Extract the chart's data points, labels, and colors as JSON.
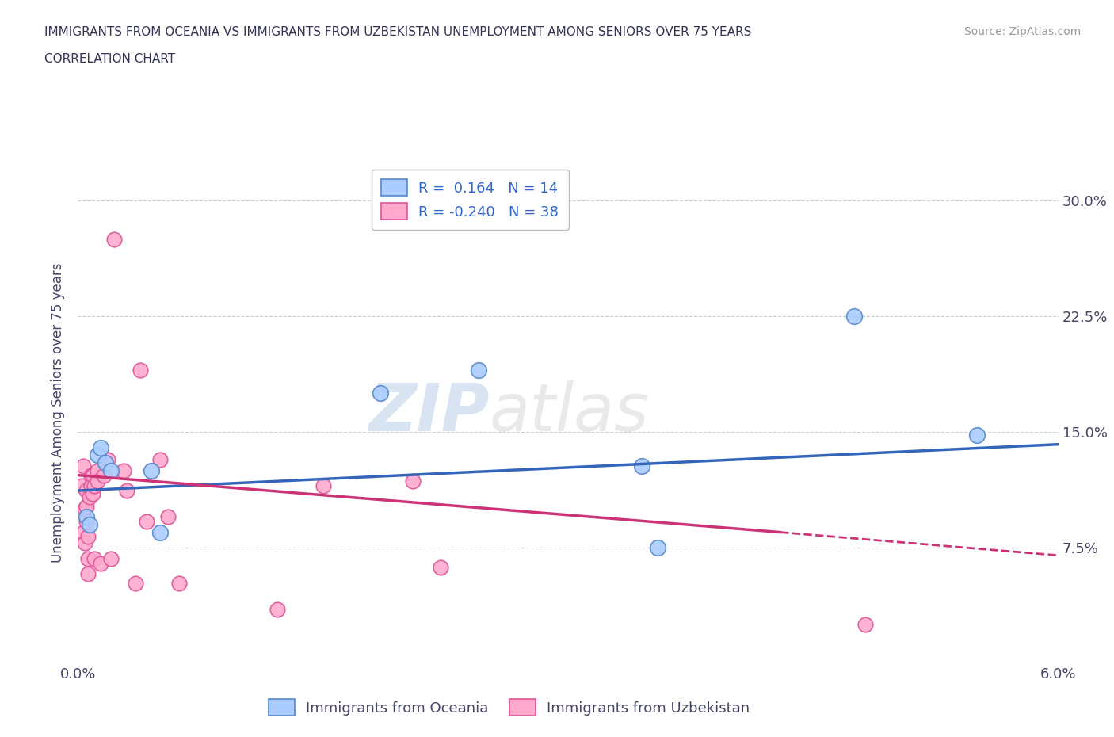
{
  "title_line1": "IMMIGRANTS FROM OCEANIA VS IMMIGRANTS FROM UZBEKISTAN UNEMPLOYMENT AMONG SENIORS OVER 75 YEARS",
  "title_line2": "CORRELATION CHART",
  "source": "Source: ZipAtlas.com",
  "ylabel": "Unemployment Among Seniors over 75 years",
  "x_min": 0.0,
  "x_max": 6.0,
  "y_min": 0.0,
  "y_max": 32.5,
  "y_ticks": [
    0.0,
    7.5,
    15.0,
    22.5,
    30.0
  ],
  "y_tick_labels_right": [
    "",
    "7.5%",
    "15.0%",
    "22.5%",
    "30.0%"
  ],
  "x_tick_labels": [
    "0.0%",
    "",
    "",
    "",
    "6.0%"
  ],
  "grid_color": "#cccccc",
  "background_color": "#ffffff",
  "watermark_zip": "ZIP",
  "watermark_atlas": "atlas",
  "oceania_color": "#aaccff",
  "uzbekistan_color": "#ffaacc",
  "oceania_edge": "#5588cc",
  "uzbekistan_edge": "#dd5599",
  "trend_oceania_color": "#3366bb",
  "trend_uzbekistan_color": "#cc3377",
  "R_oceania": 0.164,
  "N_oceania": 14,
  "R_uzbekistan": -0.24,
  "N_uzbekistan": 38,
  "trend_oceania_x0": 0.0,
  "trend_oceania_y0": 11.2,
  "trend_oceania_x1": 6.0,
  "trend_oceania_y1": 14.2,
  "trend_uzbek_solid_x0": 0.0,
  "trend_uzbek_solid_y0": 12.2,
  "trend_uzbek_solid_x1": 4.3,
  "trend_uzbek_solid_y1": 8.5,
  "trend_uzbek_dash_x0": 4.3,
  "trend_uzbek_dash_y0": 8.5,
  "trend_uzbek_dash_x1": 6.0,
  "trend_uzbek_dash_y1": 7.0,
  "oceania_points": [
    [
      0.05,
      9.5
    ],
    [
      0.07,
      9.0
    ],
    [
      0.12,
      13.5
    ],
    [
      0.14,
      14.0
    ],
    [
      0.17,
      13.0
    ],
    [
      0.2,
      12.5
    ],
    [
      0.45,
      12.5
    ],
    [
      0.5,
      8.5
    ],
    [
      1.85,
      17.5
    ],
    [
      2.45,
      19.0
    ],
    [
      3.45,
      12.8
    ],
    [
      3.55,
      7.5
    ],
    [
      4.75,
      22.5
    ],
    [
      5.5,
      14.8
    ]
  ],
  "uzbekistan_points": [
    [
      0.02,
      11.5
    ],
    [
      0.03,
      12.8
    ],
    [
      0.03,
      8.5
    ],
    [
      0.04,
      10.0
    ],
    [
      0.04,
      7.8
    ],
    [
      0.05,
      11.2
    ],
    [
      0.05,
      10.2
    ],
    [
      0.05,
      9.2
    ],
    [
      0.06,
      8.2
    ],
    [
      0.06,
      6.8
    ],
    [
      0.06,
      5.8
    ],
    [
      0.07,
      10.8
    ],
    [
      0.08,
      12.2
    ],
    [
      0.08,
      11.5
    ],
    [
      0.09,
      11.0
    ],
    [
      0.09,
      12.2
    ],
    [
      0.1,
      11.5
    ],
    [
      0.1,
      6.8
    ],
    [
      0.12,
      12.5
    ],
    [
      0.12,
      11.8
    ],
    [
      0.14,
      6.5
    ],
    [
      0.16,
      12.2
    ],
    [
      0.18,
      13.2
    ],
    [
      0.2,
      6.8
    ],
    [
      0.22,
      27.5
    ],
    [
      0.28,
      12.5
    ],
    [
      0.3,
      11.2
    ],
    [
      0.35,
      5.2
    ],
    [
      0.38,
      19.0
    ],
    [
      0.42,
      9.2
    ],
    [
      0.5,
      13.2
    ],
    [
      0.55,
      9.5
    ],
    [
      0.62,
      5.2
    ],
    [
      1.22,
      3.5
    ],
    [
      1.5,
      11.5
    ],
    [
      2.05,
      11.8
    ],
    [
      2.22,
      6.2
    ],
    [
      4.82,
      2.5
    ]
  ],
  "title_color": "#333355",
  "axis_color": "#444466",
  "legend_R_color": "#3366cc"
}
